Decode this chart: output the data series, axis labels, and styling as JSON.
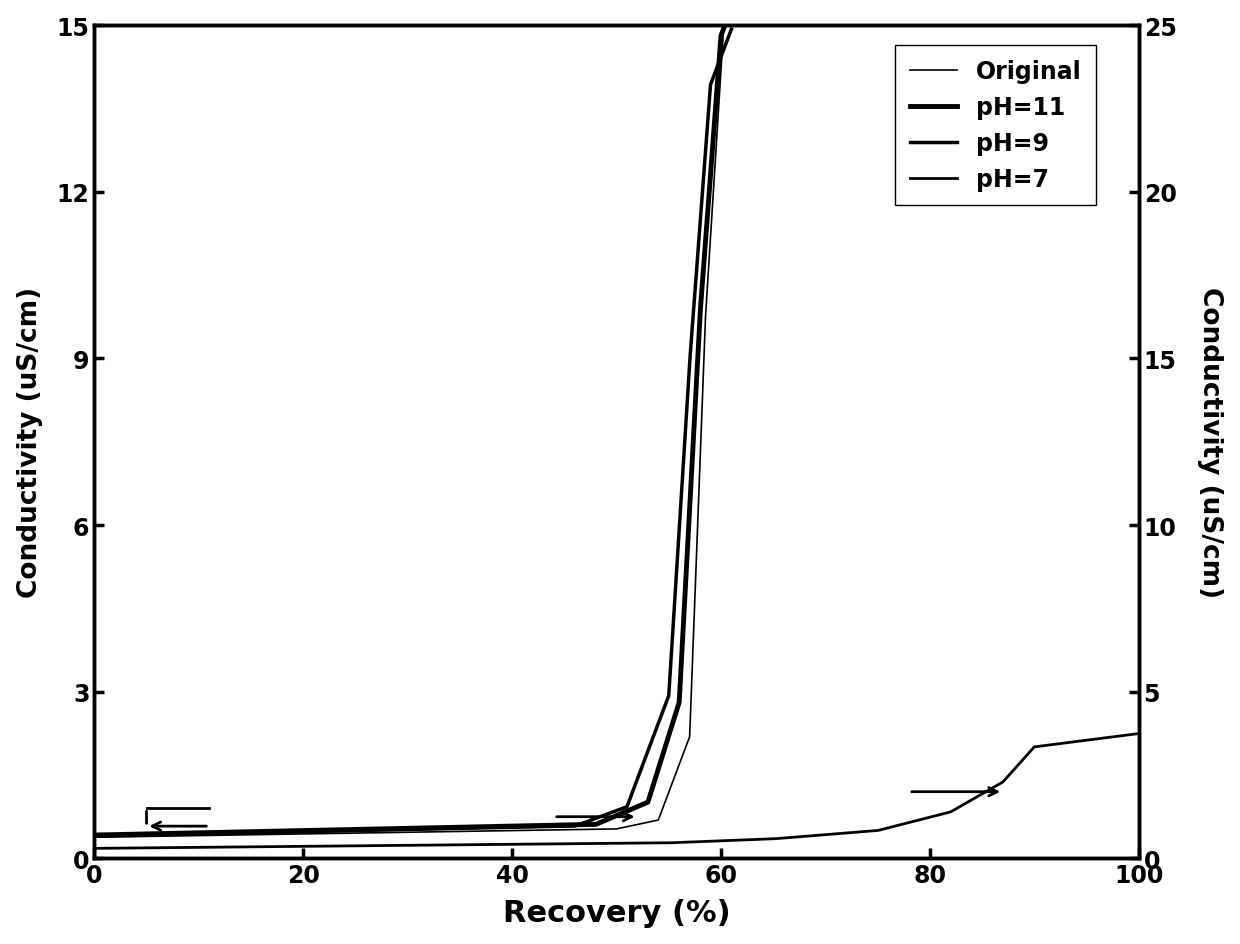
{
  "title": "",
  "xlabel": "Recovery (%)",
  "ylabel_left": "Conductivity (uS/cm)",
  "ylabel_right": "Conductivity (uS/cm)",
  "xlim": [
    0,
    100
  ],
  "ylim_left": [
    0,
    15
  ],
  "ylim_right": [
    0,
    25
  ],
  "xticks": [
    0,
    20,
    40,
    60,
    80,
    100
  ],
  "yticks_left": [
    0,
    3,
    6,
    9,
    12,
    15
  ],
  "yticks_right": [
    0,
    5,
    10,
    15,
    20,
    25
  ],
  "legend_labels": [
    "Original",
    "pH=11",
    "pH=9",
    "pH=7"
  ],
  "legend_linewidths": [
    1.2,
    3.5,
    2.5,
    2.0
  ],
  "background_color": "#ffffff",
  "line_color": "#000000",
  "figsize": [
    12.4,
    9.45
  ],
  "dpi": 100
}
